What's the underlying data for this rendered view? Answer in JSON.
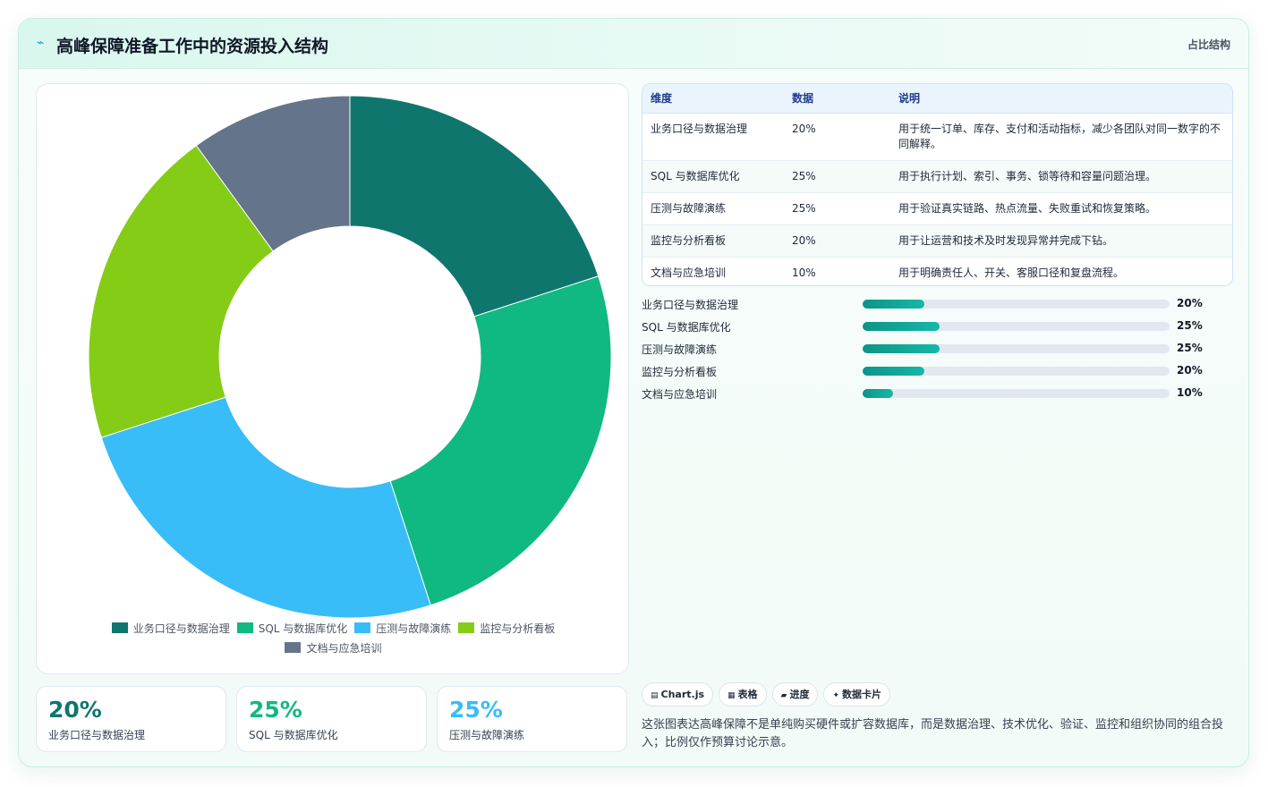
{
  "header": {
    "logo_icon": "pulse-icon",
    "title": "高峰保障准备工作中的资源投入结构",
    "tag": "占比结构"
  },
  "chart_data": {
    "type": "pie",
    "donut": true,
    "categories": [
      "业务口径与数据治理",
      "SQL 与数据库优化",
      "压测与故障演练",
      "监控与分析看板",
      "文档与应急培训"
    ],
    "values": [
      20,
      25,
      25,
      20,
      10
    ],
    "unit": "%",
    "colors": [
      "#0f766e",
      "#10b981",
      "#38bdf8",
      "#84cc16",
      "#64748b"
    ],
    "legend_position": "bottom"
  },
  "kpis": [
    {
      "value": "20%",
      "label": "业务口径与数据治理",
      "color": "#0f766e"
    },
    {
      "value": "25%",
      "label": "SQL 与数据库优化",
      "color": "#10b981"
    },
    {
      "value": "25%",
      "label": "压测与故障演练",
      "color": "#38bdf8"
    }
  ],
  "table": {
    "headers": [
      "维度",
      "数据",
      "说明"
    ],
    "rows": [
      [
        "业务口径与数据治理",
        "20%",
        "用于统一订单、库存、支付和活动指标，减少各团队对同一数字的不同解释。"
      ],
      [
        "SQL 与数据库优化",
        "25%",
        "用于执行计划、索引、事务、锁等待和容量问题治理。"
      ],
      [
        "压测与故障演练",
        "25%",
        "用于验证真实链路、热点流量、失败重试和恢复策略。"
      ],
      [
        "监控与分析看板",
        "20%",
        "用于让运营和技术及时发现异常并完成下钻。"
      ],
      [
        "文档与应急培训",
        "10%",
        "用于明确责任人、开关、客服口径和复盘流程。"
      ]
    ]
  },
  "progress": [
    {
      "label": "业务口径与数据治理",
      "value": 20,
      "text": "20%"
    },
    {
      "label": "SQL 与数据库优化",
      "value": 25,
      "text": "25%"
    },
    {
      "label": "压测与故障演练",
      "value": 25,
      "text": "25%"
    },
    {
      "label": "监控与分析看板",
      "value": 20,
      "text": "20%"
    },
    {
      "label": "文档与应急培训",
      "value": 10,
      "text": "10%"
    }
  ],
  "chips": [
    {
      "icon": "▤",
      "icon_name": "chart-icon",
      "label": "Chart.js"
    },
    {
      "icon": "▦",
      "icon_name": "table-icon",
      "label": "表格"
    },
    {
      "icon": "▰",
      "icon_name": "progress-icon",
      "label": "进度"
    },
    {
      "icon": "✦",
      "icon_name": "sparkle-icon",
      "label": "数据卡片"
    }
  ],
  "note": "这张图表达高峰保障不是单纯购买硬件或扩容数据库，而是数据治理、技术优化、验证、监控和组织协同的组合投入；比例仅作预算讨论示意。"
}
